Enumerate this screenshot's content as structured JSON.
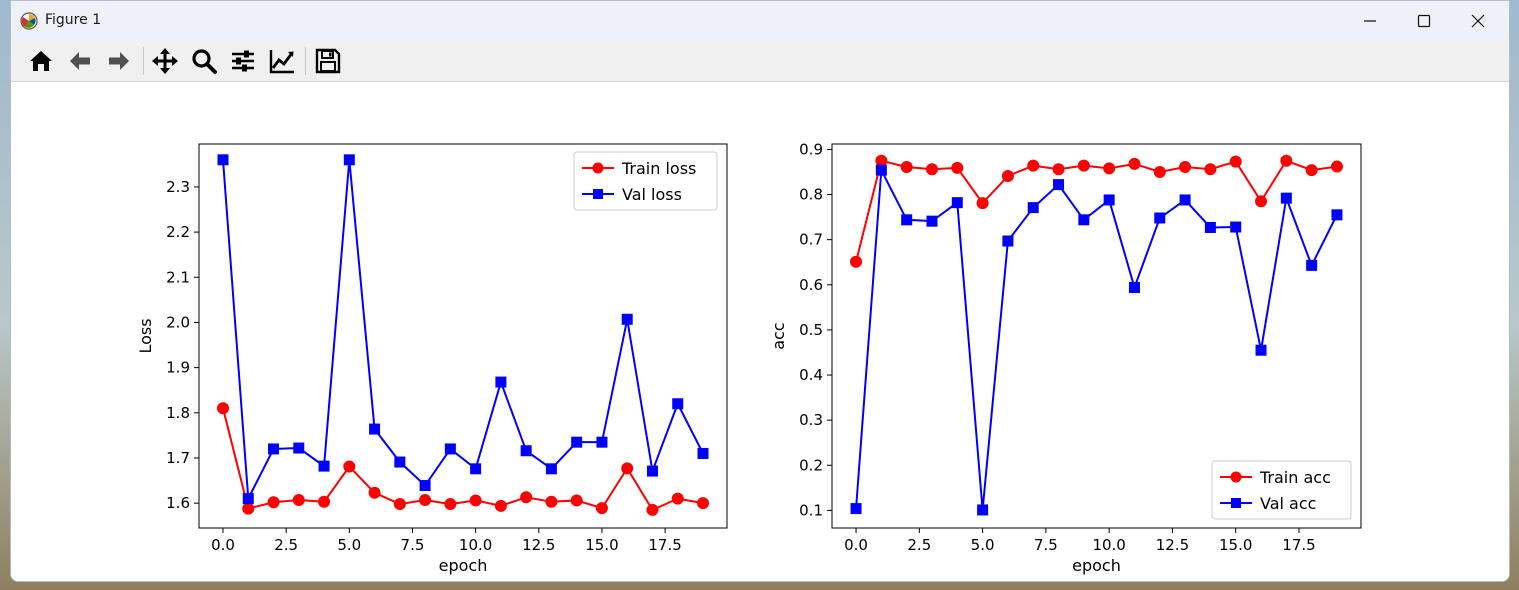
{
  "window": {
    "title": "Figure 1",
    "icons": {
      "app": "matplotlib-icon",
      "minimize": "minimize-icon",
      "maximize": "maximize-icon",
      "close": "close-icon"
    }
  },
  "toolbar": {
    "buttons": [
      {
        "name": "home",
        "icon": "home-icon"
      },
      {
        "name": "back",
        "icon": "arrow-left-icon"
      },
      {
        "name": "forward",
        "icon": "arrow-right-icon"
      },
      {
        "name": "pan",
        "icon": "move-icon"
      },
      {
        "name": "zoom",
        "icon": "magnifier-icon"
      },
      {
        "name": "configure-subplots",
        "icon": "sliders-icon"
      },
      {
        "name": "edit-axes",
        "icon": "line-chart-icon"
      },
      {
        "name": "save",
        "icon": "floppy-disk-icon"
      }
    ]
  },
  "chart_data": [
    {
      "type": "line",
      "title": "",
      "xlabel": "epoch",
      "ylabel": "Loss",
      "xlim": [
        -0.95,
        19.95
      ],
      "ylim": [
        1.545,
        2.395
      ],
      "xticks": [
        0,
        2.5,
        5,
        7.5,
        10,
        12.5,
        15,
        17.5
      ],
      "xtick_labels": [
        "0.0",
        "2.5",
        "5.0",
        "7.5",
        "10.0",
        "12.5",
        "15.0",
        "17.5"
      ],
      "yticks": [
        1.6,
        1.7,
        1.8,
        1.9,
        2.0,
        2.1,
        2.2,
        2.3
      ],
      "ytick_labels": [
        "1.6",
        "1.7",
        "1.8",
        "1.9",
        "2.0",
        "2.1",
        "2.2",
        "2.3"
      ],
      "grid": false,
      "legend": "top-right",
      "x": [
        0,
        1,
        2,
        3,
        4,
        5,
        6,
        7,
        8,
        9,
        10,
        11,
        12,
        13,
        14,
        15,
        16,
        17,
        18,
        19
      ],
      "series": [
        {
          "name": "Train loss",
          "color": "#ff0000",
          "marker": "circle",
          "values": [
            1.81,
            1.588,
            1.602,
            1.607,
            1.603,
            1.681,
            1.623,
            1.598,
            1.607,
            1.598,
            1.606,
            1.594,
            1.613,
            1.603,
            1.606,
            1.589,
            1.677,
            1.585,
            1.61,
            1.6
          ]
        },
        {
          "name": "Val loss",
          "color": "#0000ff",
          "marker": "square",
          "values": [
            2.36,
            1.61,
            1.72,
            1.722,
            1.682,
            2.36,
            1.764,
            1.691,
            1.639,
            1.72,
            1.676,
            1.868,
            1.716,
            1.676,
            1.735,
            1.735,
            2.007,
            1.671,
            1.82,
            1.71
          ]
        }
      ]
    },
    {
      "type": "line",
      "title": "",
      "xlabel": "epoch",
      "ylabel": "acc",
      "xlim": [
        -0.95,
        19.95
      ],
      "ylim": [
        0.061,
        0.912
      ],
      "xticks": [
        0,
        2.5,
        5,
        7.5,
        10,
        12.5,
        15,
        17.5
      ],
      "xtick_labels": [
        "0.0",
        "2.5",
        "5.0",
        "7.5",
        "10.0",
        "12.5",
        "15.0",
        "17.5"
      ],
      "yticks": [
        0.1,
        0.2,
        0.3,
        0.4,
        0.5,
        0.6,
        0.7,
        0.8,
        0.9
      ],
      "ytick_labels": [
        "0.1",
        "0.2",
        "0.3",
        "0.4",
        "0.5",
        "0.6",
        "0.7",
        "0.8",
        "0.9"
      ],
      "grid": false,
      "legend": "bottom-right",
      "x": [
        0,
        1,
        2,
        3,
        4,
        5,
        6,
        7,
        8,
        9,
        10,
        11,
        12,
        13,
        14,
        15,
        16,
        17,
        18,
        19
      ],
      "series": [
        {
          "name": "Train acc",
          "color": "#ff0000",
          "marker": "circle",
          "values": [
            0.651,
            0.875,
            0.861,
            0.856,
            0.859,
            0.781,
            0.841,
            0.864,
            0.856,
            0.864,
            0.858,
            0.868,
            0.85,
            0.861,
            0.856,
            0.873,
            0.785,
            0.875,
            0.854,
            0.862
          ]
        },
        {
          "name": "Val acc",
          "color": "#0000ff",
          "marker": "square",
          "values": [
            0.104,
            0.854,
            0.744,
            0.741,
            0.782,
            0.101,
            0.697,
            0.771,
            0.822,
            0.744,
            0.788,
            0.594,
            0.748,
            0.788,
            0.727,
            0.728,
            0.455,
            0.792,
            0.643,
            0.755
          ]
        }
      ]
    }
  ]
}
